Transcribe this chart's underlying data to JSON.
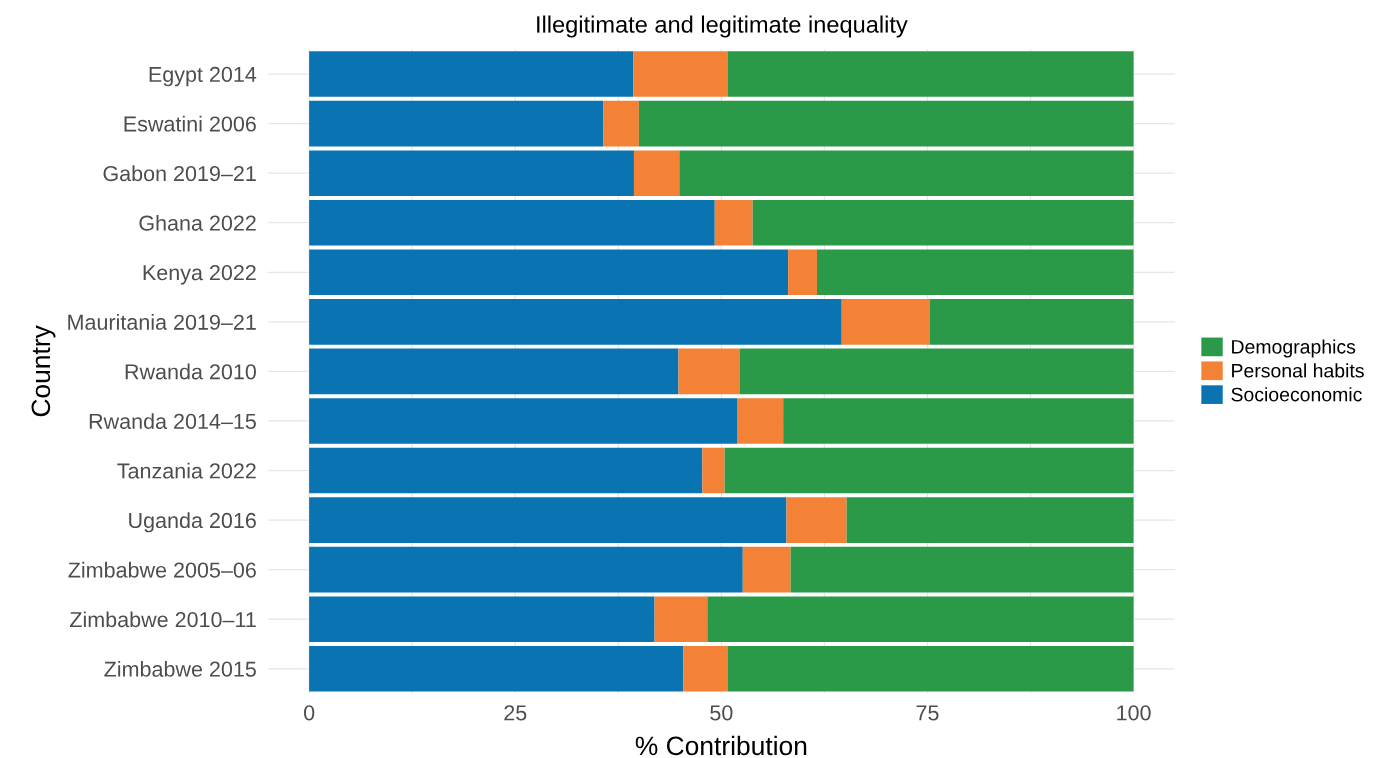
{
  "chart_data": {
    "type": "bar",
    "orientation": "horizontal",
    "stacked": true,
    "title": "Illegitimate and legitimate inequality",
    "xlabel": "% Contribution",
    "ylabel": "Country",
    "categories": [
      "Egypt 2014",
      "Eswatini 2006",
      "Gabon 2019–21",
      "Ghana 2022",
      "Kenya 2022",
      "Mauritania 2019–21",
      "Rwanda 2010",
      "Rwanda 2014–15",
      "Tanzania 2022",
      "Uganda 2016",
      "Zimbabwe 2005–06",
      "Zimbabwe 2010–11",
      "Zimbabwe 2015"
    ],
    "series": [
      {
        "name": "Socioeconomic",
        "color": "#0a74b3",
        "values": [
          39.3,
          35.7,
          39.4,
          49.2,
          58.1,
          64.6,
          44.8,
          51.9,
          47.7,
          57.9,
          52.6,
          41.9,
          45.4
        ]
      },
      {
        "name": "Personal habits",
        "color": "#f38236",
        "values": [
          11.5,
          4.3,
          5.5,
          4.6,
          3.5,
          10.7,
          7.4,
          5.6,
          2.7,
          7.3,
          5.8,
          6.4,
          5.4
        ]
      },
      {
        "name": "Demographics",
        "color": "#2a9a49",
        "values": [
          49.2,
          60.0,
          55.1,
          46.2,
          38.4,
          24.7,
          47.8,
          42.5,
          49.6,
          34.8,
          41.6,
          51.7,
          49.2
        ]
      }
    ],
    "xlim": [
      -5,
      105
    ],
    "xticks": [
      0,
      {
        "value": 12.5,
        "label": null
      },
      25,
      {
        "value": 37.5,
        "label": null
      },
      50,
      {
        "value": 62.5,
        "label": null
      },
      75,
      {
        "value": 87.5,
        "label": null
      },
      100
    ],
    "grid": true,
    "legend": "right"
  }
}
